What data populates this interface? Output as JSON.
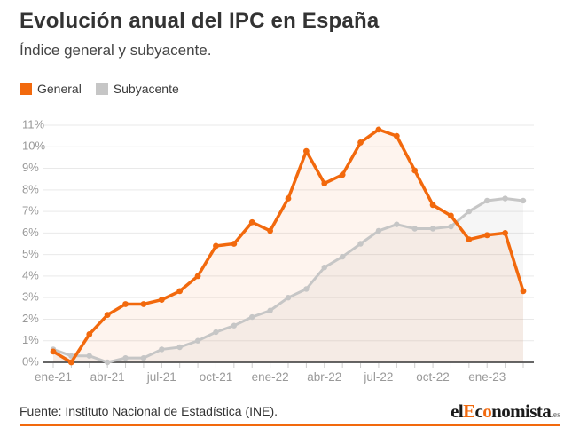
{
  "header": {
    "title": "Evolución anual del IPC en España",
    "subtitle": "Índice general y subyacente."
  },
  "legend": [
    {
      "label": "General",
      "color": "#f2690d"
    },
    {
      "label": "Subyacente",
      "color": "#c6c6c6"
    }
  ],
  "chart_data": {
    "type": "line",
    "title": "Evolución anual del IPC en España",
    "subtitle": "Índice general y subyacente.",
    "categories": [
      "ene-21",
      "feb-21",
      "mar-21",
      "abr-21",
      "may-21",
      "jun-21",
      "jul-21",
      "ago-21",
      "sep-21",
      "oct-21",
      "nov-21",
      "dic-21",
      "ene-22",
      "feb-22",
      "mar-22",
      "abr-22",
      "may-22",
      "jun-22",
      "jul-22",
      "ago-22",
      "sep-22",
      "oct-22",
      "nov-22",
      "dic-22",
      "ene-23",
      "feb-23",
      "mar-23"
    ],
    "x_tick_labels": [
      "ene-21",
      "abr-21",
      "jul-21",
      "oct-21",
      "ene-22",
      "abr-22",
      "jul-22",
      "oct-22",
      "ene-23"
    ],
    "series": [
      {
        "name": "General",
        "color": "#f2690d",
        "area_fill": "rgba(242,105,13,0.07)",
        "values": [
          0.5,
          0.0,
          1.3,
          2.2,
          2.7,
          2.7,
          2.9,
          3.3,
          4.0,
          5.4,
          5.5,
          6.5,
          6.1,
          7.6,
          9.8,
          8.3,
          8.7,
          10.2,
          10.8,
          10.5,
          8.9,
          7.3,
          6.8,
          5.7,
          5.9,
          6.0,
          3.3
        ]
      },
      {
        "name": "Subyacente",
        "color": "#c6c6c6",
        "area_fill": "rgba(170,170,170,0.10)",
        "values": [
          0.6,
          0.3,
          0.3,
          0.0,
          0.2,
          0.2,
          0.6,
          0.7,
          1.0,
          1.4,
          1.7,
          2.1,
          2.4,
          3.0,
          3.4,
          4.4,
          4.9,
          5.5,
          6.1,
          6.4,
          6.2,
          6.2,
          6.3,
          7.0,
          7.5,
          7.6,
          7.5
        ]
      }
    ],
    "ylim": [
      0,
      11
    ],
    "y_tick_step": 1,
    "y_tick_suffix": "%",
    "grid": true,
    "gridline_color": "#e9e9e9",
    "axis_color": "#333333",
    "tick_color": "#cccccc",
    "axis_label_color": "#999999",
    "legend_position": "top-left"
  },
  "footer": {
    "source": "Fuente: Instituto Nacional de Estadística (INE).",
    "logo_segments": [
      {
        "text": "el",
        "style": "dark"
      },
      {
        "text": "E",
        "style": "orange"
      },
      {
        "text": "c",
        "style": "dark"
      },
      {
        "text": "o",
        "style": "orange"
      },
      {
        "text": "nomista",
        "style": "dark"
      },
      {
        "text": ".es",
        "style": "suffix"
      }
    ]
  }
}
